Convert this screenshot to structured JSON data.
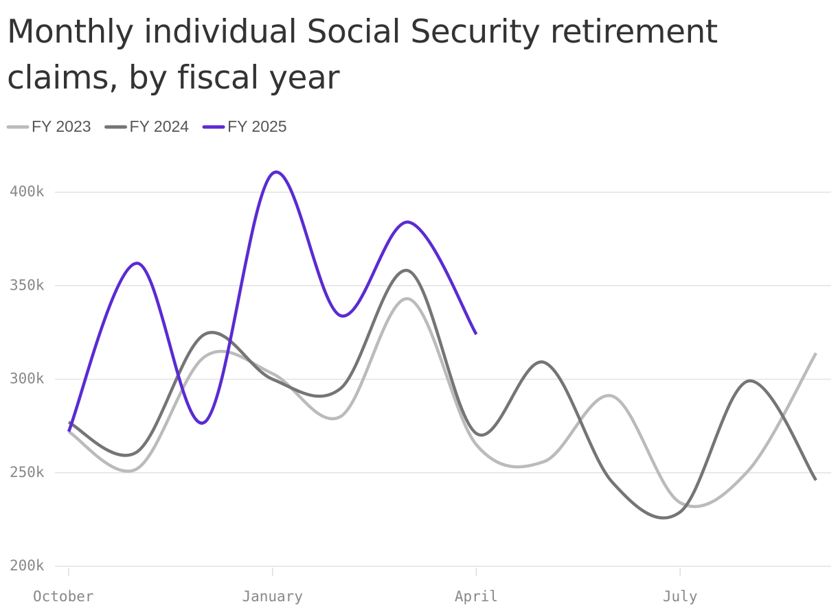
{
  "chart_data": {
    "type": "line",
    "title": "Monthly individual Social Security retirement claims, by fiscal year",
    "categories": [
      "October",
      null,
      null,
      "January",
      null,
      null,
      "April",
      null,
      null,
      "July",
      null,
      null
    ],
    "series": [
      {
        "name": "FY 2023",
        "color": "#bbbbbb",
        "values": [
          272000,
          252000,
          312000,
          303000,
          280000,
          343000,
          265000,
          256000,
          291000,
          234000,
          251000,
          314000
        ]
      },
      {
        "name": "FY 2024",
        "color": "#757575",
        "values": [
          277000,
          261000,
          324000,
          300000,
          295000,
          358000,
          271000,
          309000,
          245000,
          229000,
          299000,
          246000
        ]
      },
      {
        "name": "FY 2025",
        "color": "#5a2bd3",
        "values": [
          272000,
          362000,
          277000,
          410000,
          334000,
          384000,
          324000,
          null,
          null,
          null,
          null,
          null
        ]
      }
    ],
    "ylim": [
      200000,
      400000
    ],
    "yticks": [
      {
        "value": 200000,
        "label": "200k"
      },
      {
        "value": 250000,
        "label": "250k"
      },
      {
        "value": 300000,
        "label": "300k"
      },
      {
        "value": 350000,
        "label": "350k"
      },
      {
        "value": 400000,
        "label": "400k"
      }
    ],
    "grid": true,
    "legend": "top-left"
  }
}
